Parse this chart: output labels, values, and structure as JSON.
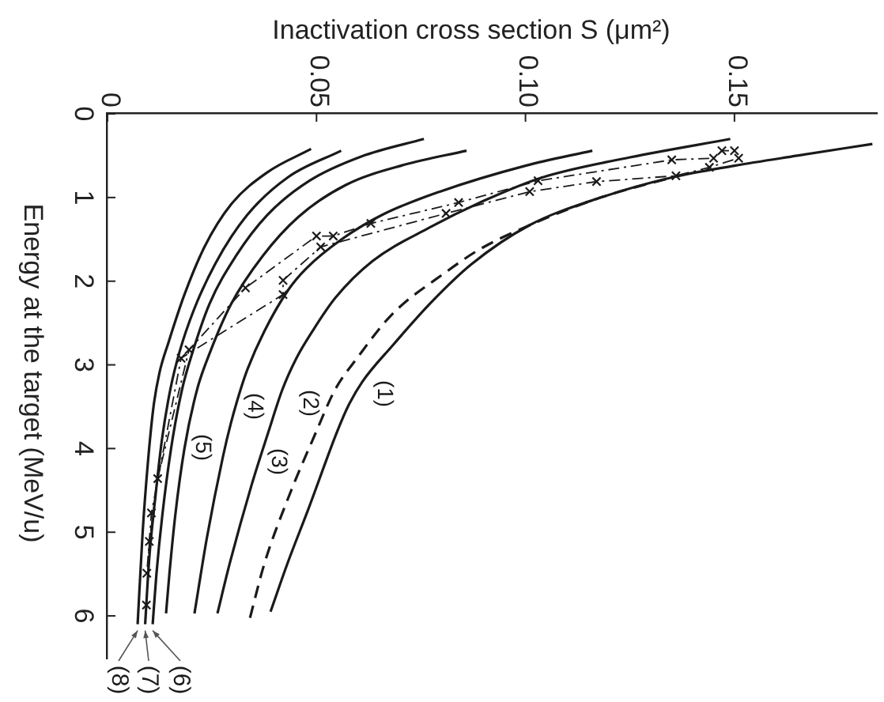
{
  "chart_data": {
    "type": "line",
    "xlabel": "Inactivation cross section S (μm²)",
    "ylabel": "Energy at the target (MeV/u)",
    "xlim": [
      0,
      0.184
    ],
    "xticks": [
      0,
      0.05,
      {
        "value": 0.1,
        "label": "0.10"
      },
      0.15
    ],
    "ylim": [
      6.5,
      0
    ],
    "yticks": [
      0,
      1,
      2,
      3,
      4,
      5,
      6
    ],
    "series": [
      {
        "name": "(1)",
        "color": "#1a1a1a",
        "line_style": "solid",
        "x": [
          0.183,
          0.165,
          0.15,
          0.135,
          0.118,
          0.101,
          0.087,
          0.0775,
          0.068,
          0.061,
          0.0575,
          0.055,
          0.048,
          0.043,
          0.039
        ],
        "values": [
          0.36,
          0.5,
          0.62,
          0.76,
          1.0,
          1.33,
          1.8,
          2.25,
          2.78,
          3.2,
          3.5,
          3.79,
          4.73,
          5.38,
          5.95
        ]
      },
      {
        "name": "(2)",
        "color": "#1a1a1a",
        "line_style": "dashed",
        "x": [
          0.135,
          0.118,
          0.101,
          0.089,
          0.081,
          0.068,
          0.0597,
          0.0544,
          0.05,
          0.043,
          0.0375,
          0.034
        ],
        "values": [
          0.76,
          1.0,
          1.33,
          1.62,
          1.89,
          2.4,
          2.92,
          3.3,
          3.79,
          4.62,
          5.38,
          6.04
        ]
      },
      {
        "name": "(3)",
        "color": "#1a1a1a",
        "line_style": "solid",
        "x": [
          0.149,
          0.125,
          0.104,
          0.09,
          0.077,
          0.0634,
          0.0545,
          0.049,
          0.0452,
          0.0418,
          0.0385,
          0.0345,
          0.0292,
          0.0263
        ],
        "values": [
          0.3,
          0.52,
          0.76,
          1.04,
          1.36,
          1.76,
          2.2,
          2.6,
          2.92,
          3.3,
          3.8,
          4.43,
          5.38,
          5.97
        ]
      },
      {
        "name": "(4)",
        "color": "#1a1a1a",
        "line_style": "solid",
        "x": [
          0.116,
          0.1,
          0.0795,
          0.066,
          0.056,
          0.0475,
          0.0433,
          0.0375,
          0.0335,
          0.0318,
          0.0295,
          0.0276,
          0.0238,
          0.0208
        ],
        "values": [
          0.44,
          0.62,
          0.93,
          1.2,
          1.5,
          1.85,
          2.1,
          2.6,
          3.05,
          3.3,
          3.7,
          4.1,
          5.06,
          5.97
        ]
      },
      {
        "name": "(5)",
        "color": "#1a1a1a",
        "line_style": "solid",
        "x": [
          0.0859,
          0.0709,
          0.057,
          0.0457,
          0.0371,
          0.0296,
          0.0246,
          0.0214,
          0.0184,
          0.0162,
          0.0148,
          0.014
        ],
        "values": [
          0.44,
          0.61,
          0.85,
          1.23,
          1.7,
          2.27,
          2.84,
          3.3,
          4.0,
          4.8,
          5.5,
          5.97
        ]
      },
      {
        "name": "(6)",
        "color": "#1a1a1a",
        "line_style": "solid",
        "x": [
          0.0757,
          0.0607,
          0.0483,
          0.0382,
          0.0307,
          0.0244,
          0.0204,
          0.0178,
          0.0152,
          0.0131,
          0.0117,
          0.0108
        ],
        "values": [
          0.3,
          0.51,
          0.8,
          1.21,
          1.7,
          2.27,
          2.84,
          3.3,
          4.0,
          4.8,
          5.5,
          6.1
        ]
      },
      {
        "name": "(7)",
        "color": "#1a1a1a",
        "line_style": "solid",
        "x": [
          0.0559,
          0.0431,
          0.0334,
          0.0259,
          0.0206,
          0.0172,
          0.015,
          0.013,
          0.0114,
          0.01,
          0.009
        ],
        "values": [
          0.44,
          0.76,
          1.21,
          1.78,
          2.35,
          2.85,
          3.3,
          3.9,
          4.6,
          5.3,
          6.1
        ]
      },
      {
        "name": "(8)",
        "color": "#1a1a1a",
        "line_style": "solid",
        "x": [
          0.0487,
          0.0382,
          0.0296,
          0.0232,
          0.0184,
          0.0146,
          0.0124,
          0.011,
          0.0096,
          0.0084,
          0.0072
        ],
        "values": [
          0.42,
          0.7,
          1.08,
          1.59,
          2.16,
          2.73,
          3.1,
          3.5,
          4.2,
          5.0,
          6.1
        ]
      },
      {
        "color": "#1a1a1a",
        "line_style": "dashed",
        "marker": "cross",
        "x": [
          0.15,
          0.147,
          0.145,
          0.135,
          0.103,
          0.084,
          0.063,
          0.054,
          0.05,
          0.033,
          0.0195,
          0.012,
          0.01,
          0.0093
        ],
        "values": [
          0.44,
          0.44,
          0.53,
          0.55,
          0.8,
          1.06,
          1.31,
          1.46,
          1.46,
          2.08,
          2.82,
          4.36,
          5.11,
          5.87
        ]
      },
      {
        "color": "#1a1a1a",
        "line_style": "dashed",
        "marker": "cross",
        "x": [
          0.151,
          0.144,
          0.136,
          0.117,
          0.101,
          0.081,
          0.051,
          0.042,
          0.042,
          0.0176,
          0.0105,
          0.0094
        ],
        "values": [
          0.53,
          0.64,
          0.74,
          0.81,
          0.93,
          1.19,
          1.59,
          1.99,
          2.16,
          2.92,
          4.77,
          5.49
        ]
      }
    ]
  }
}
